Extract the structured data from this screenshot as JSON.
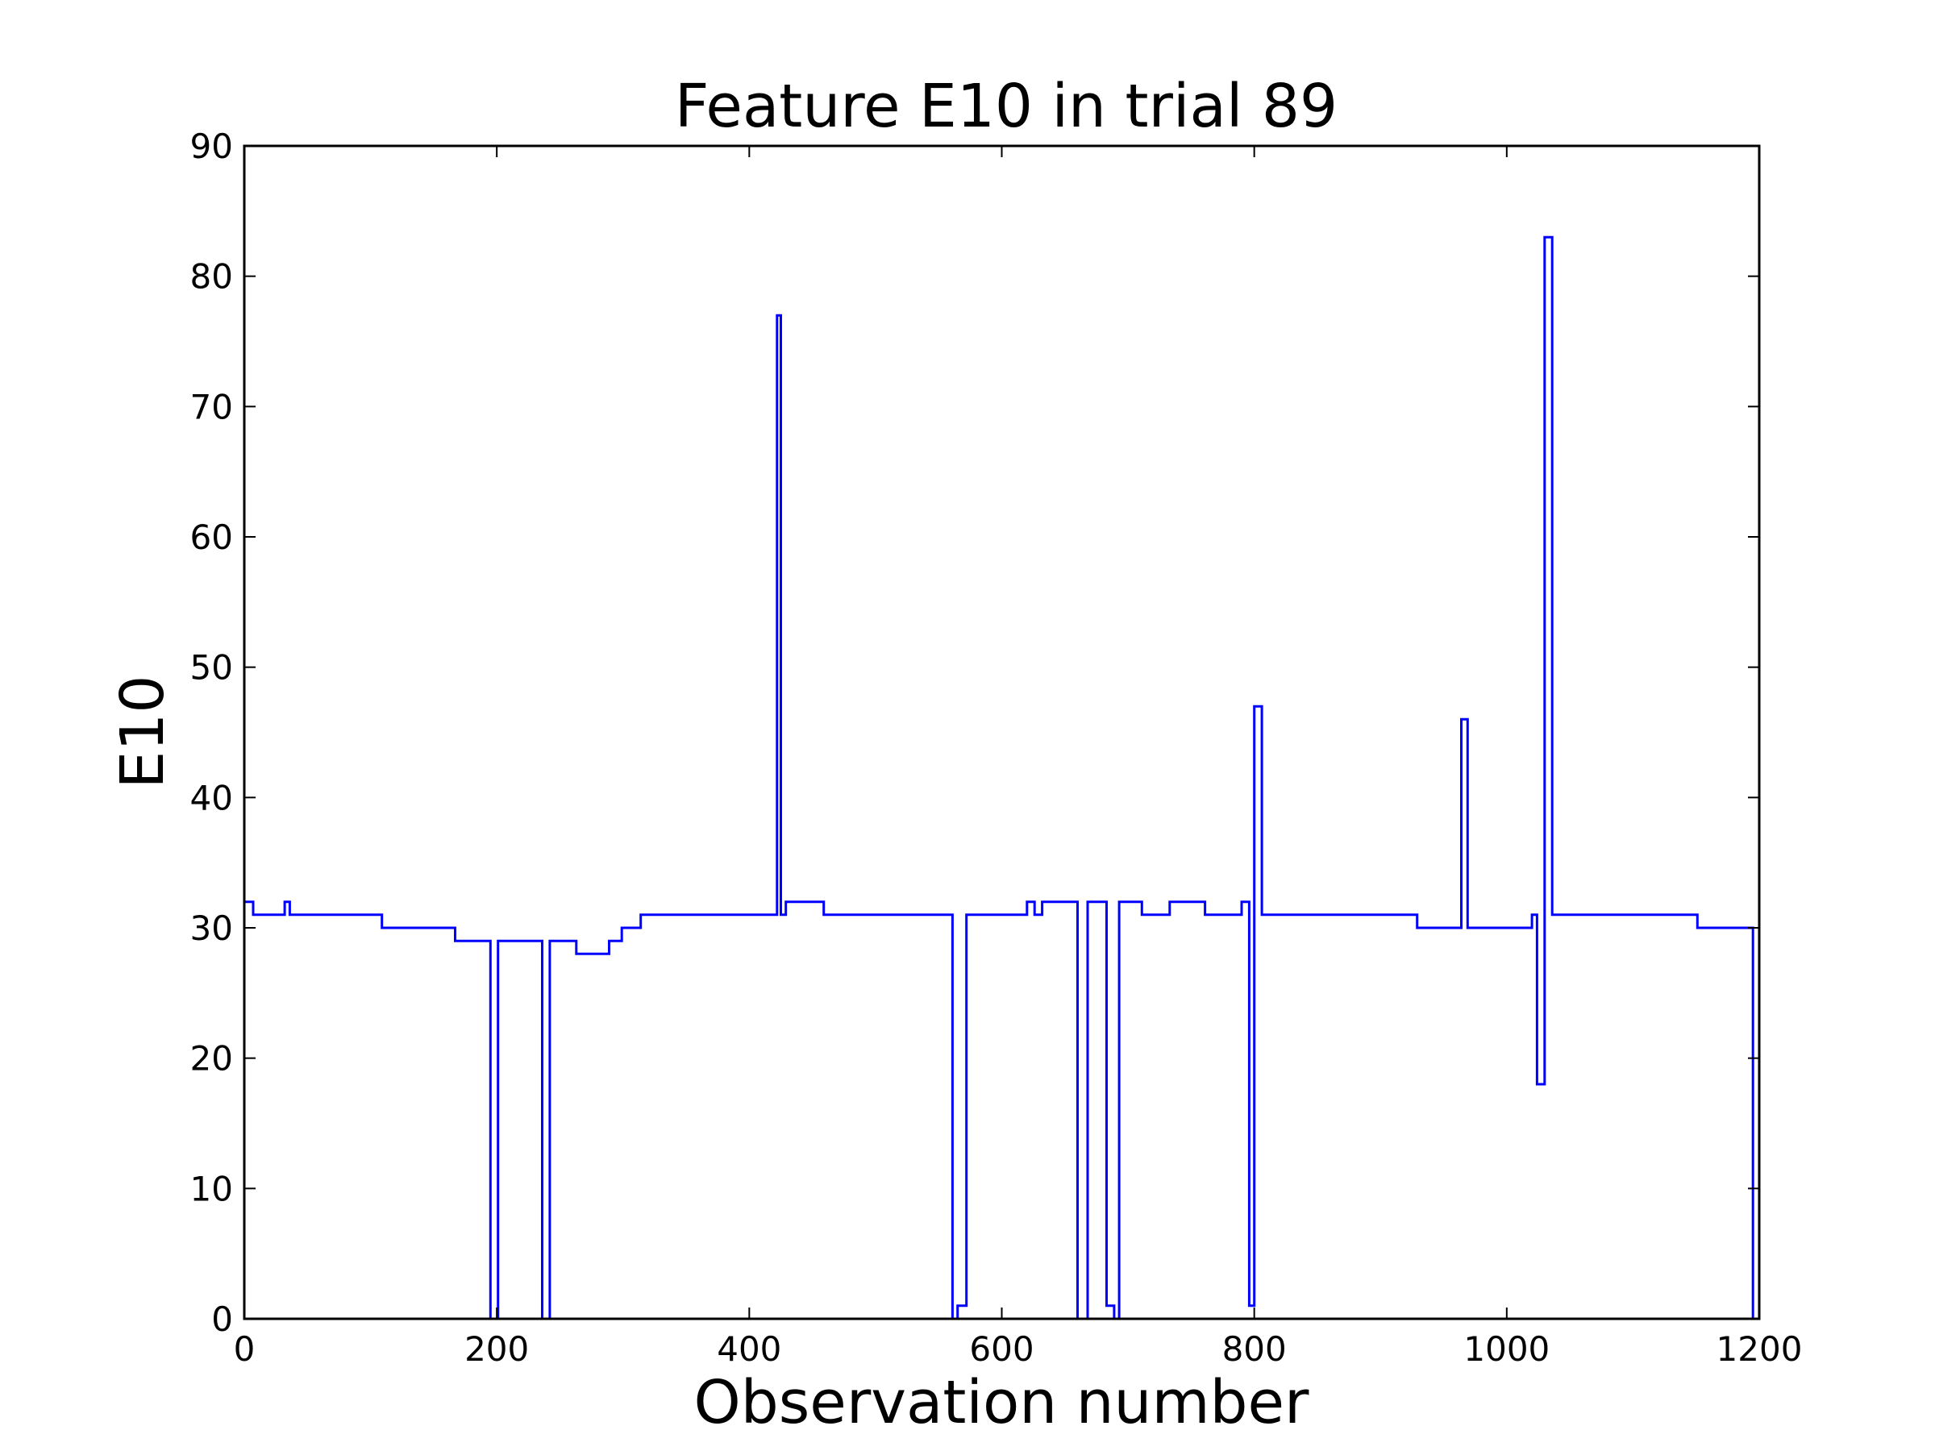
{
  "chart_data": {
    "type": "line",
    "title": "Feature E10 in trial 89",
    "xlabel": "Observation number",
    "ylabel": "E10",
    "xlim": [
      0,
      1200
    ],
    "ylim": [
      0,
      90
    ],
    "x_ticks": [
      0,
      200,
      400,
      600,
      800,
      1000,
      1200
    ],
    "y_ticks": [
      0,
      10,
      20,
      30,
      40,
      50,
      60,
      70,
      80,
      90
    ],
    "grid": false,
    "step": true,
    "series": [
      {
        "color": "#0000ff",
        "points": [
          [
            0,
            32
          ],
          [
            7,
            31
          ],
          [
            32,
            32
          ],
          [
            36,
            31
          ],
          [
            109,
            30
          ],
          [
            167,
            29
          ],
          [
            195,
            0
          ],
          [
            201,
            29
          ],
          [
            236,
            0
          ],
          [
            242,
            29
          ],
          [
            263,
            28
          ],
          [
            289,
            29
          ],
          [
            299,
            30
          ],
          [
            314,
            31
          ],
          [
            422,
            77
          ],
          [
            425,
            31
          ],
          [
            429,
            32
          ],
          [
            459,
            31
          ],
          [
            561,
            0
          ],
          [
            565,
            1
          ],
          [
            572,
            31
          ],
          [
            620,
            32
          ],
          [
            626,
            31
          ],
          [
            632,
            32
          ],
          [
            660,
            0
          ],
          [
            668,
            32
          ],
          [
            683,
            1
          ],
          [
            689,
            0
          ],
          [
            693,
            32
          ],
          [
            711,
            31
          ],
          [
            733,
            32
          ],
          [
            761,
            31
          ],
          [
            790,
            32
          ],
          [
            796,
            1
          ],
          [
            800,
            47
          ],
          [
            806,
            31
          ],
          [
            929,
            30
          ],
          [
            964,
            46
          ],
          [
            969,
            30
          ],
          [
            1020,
            31
          ],
          [
            1024,
            18
          ],
          [
            1030,
            83
          ],
          [
            1036,
            31
          ],
          [
            1151,
            30
          ],
          [
            1195,
            0
          ],
          [
            1199,
            0
          ]
        ]
      }
    ]
  }
}
